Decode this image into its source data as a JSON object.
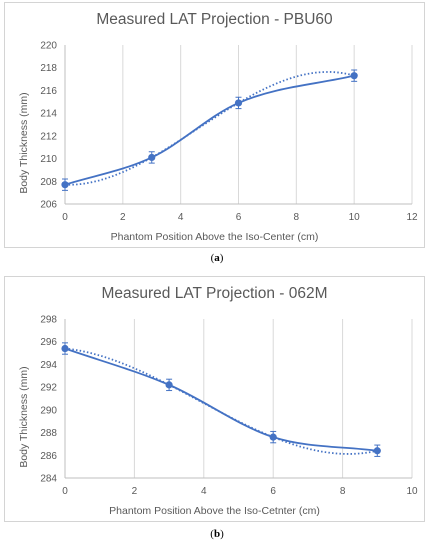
{
  "figures": [
    {
      "caption": {
        "open": "(",
        "letter": "a",
        "close": ")"
      },
      "chart_data": {
        "type": "scatter",
        "title": "Measured LAT Projection - PBU60",
        "xlabel": "Phantom Position Above the Iso-Center (cm)",
        "ylabel": "Body Thickness (mm)",
        "xlim": [
          0,
          12
        ],
        "ylim": [
          206,
          220
        ],
        "x_ticks": [
          "0",
          "2",
          "4",
          "6",
          "8",
          "10",
          "12"
        ],
        "y_ticks": [
          "206",
          "208",
          "210",
          "212",
          "214",
          "216",
          "218",
          "220"
        ],
        "grid": "vertical",
        "legend": "none",
        "series": [
          {
            "x": [
              0,
              3,
              6,
              10
            ],
            "y": [
              207.7,
              210.1,
              214.9,
              217.3
            ],
            "error": [
              0.5,
              0.5,
              0.5,
              0.5
            ],
            "smooth_line": true,
            "trendline": "polynomial",
            "color": "#4472c4"
          }
        ]
      }
    },
    {
      "caption": {
        "open": "(",
        "letter": "b",
        "close": ")"
      },
      "chart_data": {
        "type": "scatter",
        "title": "Measured LAT Projection - 062M",
        "xlabel": "Phantom Position Above the Iso-Cetnter (cm)",
        "ylabel": "Body Thickness (mm)",
        "xlim": [
          0,
          10
        ],
        "ylim": [
          284,
          298
        ],
        "x_ticks": [
          "0",
          "2",
          "4",
          "6",
          "8",
          "10"
        ],
        "y_ticks": [
          "284",
          "286",
          "288",
          "290",
          "292",
          "294",
          "296",
          "298"
        ],
        "grid": "vertical",
        "legend": "none",
        "series": [
          {
            "x": [
              0,
              3,
              6,
              9
            ],
            "y": [
              295.4,
              292.2,
              287.6,
              286.4
            ],
            "error": [
              0.5,
              0.5,
              0.5,
              0.5
            ],
            "smooth_line": true,
            "trendline": "polynomial",
            "color": "#4472c4"
          }
        ]
      }
    }
  ]
}
